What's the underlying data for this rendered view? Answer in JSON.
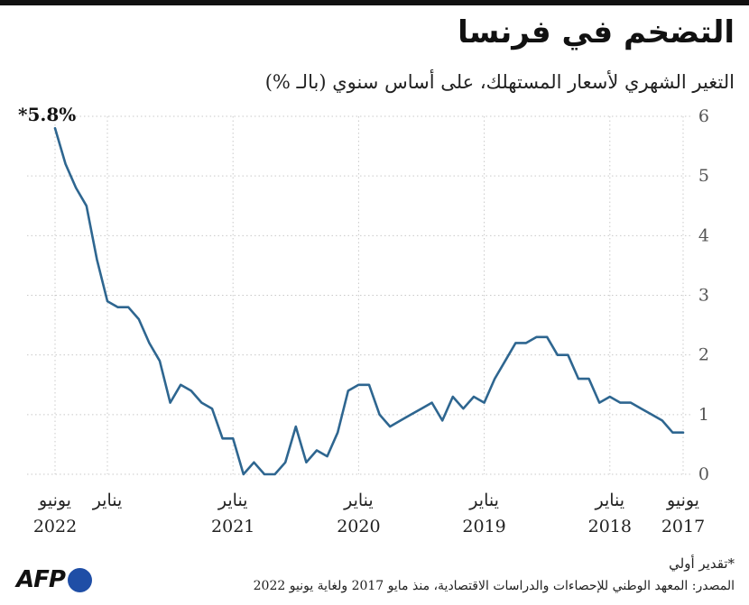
{
  "header": {
    "title": "التضخم في فرنسا",
    "subtitle": "التغير الشهري لأسعار المستهلك، على أساس سنوي (بالـ %)"
  },
  "footer": {
    "footnote": "*تقدير أولي",
    "source": "المصدر: المعهد الوطني للإحصاءات والدراسات الاقتصادية، منذ مايو 2017 ولغاية يونيو 2022",
    "logo_text": "AFP"
  },
  "colors": {
    "line": "#2e6690",
    "grid": "#c9c9c9",
    "axis_text": "#555555",
    "logo": "#1f4ea6"
  },
  "chart_data": {
    "type": "line",
    "x_direction": "right-to-left",
    "x": [
      "2017-06",
      "2017-07",
      "2017-08",
      "2017-09",
      "2017-10",
      "2017-11",
      "2017-12",
      "2018-01",
      "2018-02",
      "2018-03",
      "2018-04",
      "2018-05",
      "2018-06",
      "2018-07",
      "2018-08",
      "2018-09",
      "2018-10",
      "2018-11",
      "2018-12",
      "2019-01",
      "2019-02",
      "2019-03",
      "2019-04",
      "2019-05",
      "2019-06",
      "2019-07",
      "2019-08",
      "2019-09",
      "2019-10",
      "2019-11",
      "2019-12",
      "2020-01",
      "2020-02",
      "2020-03",
      "2020-04",
      "2020-05",
      "2020-06",
      "2020-07",
      "2020-08",
      "2020-09",
      "2020-10",
      "2020-11",
      "2020-12",
      "2021-01",
      "2021-02",
      "2021-03",
      "2021-04",
      "2021-05",
      "2021-06",
      "2021-07",
      "2021-08",
      "2021-09",
      "2021-10",
      "2021-11",
      "2021-12",
      "2022-01",
      "2022-02",
      "2022-03",
      "2022-04",
      "2022-05",
      "2022-06"
    ],
    "series": [
      {
        "values": [
          0.7,
          0.7,
          0.9,
          1.0,
          1.1,
          1.2,
          1.2,
          1.3,
          1.2,
          1.6,
          1.6,
          2.0,
          2.0,
          2.3,
          2.3,
          2.2,
          2.2,
          1.9,
          1.6,
          1.2,
          1.3,
          1.1,
          1.3,
          0.9,
          1.2,
          1.1,
          1.0,
          0.9,
          0.8,
          1.0,
          1.5,
          1.5,
          1.4,
          0.7,
          0.3,
          0.4,
          0.2,
          0.8,
          0.2,
          0.0,
          0.0,
          0.2,
          0.0,
          0.6,
          0.6,
          1.1,
          1.2,
          1.4,
          1.5,
          1.2,
          1.9,
          2.2,
          2.6,
          2.8,
          2.8,
          2.9,
          3.6,
          4.5,
          4.8,
          5.2,
          5.8
        ]
      }
    ],
    "ylim": [
      0,
      6
    ],
    "yticks": [
      "0",
      "1",
      "2",
      "3",
      "4",
      "5",
      "6"
    ],
    "grid": true,
    "annotation": {
      "x": "2022-06",
      "text": "*5.8%"
    },
    "x_tick_labels": [
      {
        "x": "2017-06",
        "line1": "يونيو",
        "line2": "2017"
      },
      {
        "x": "2018-01",
        "line1": "يناير",
        "line2": "2018"
      },
      {
        "x": "2019-01",
        "line1": "يناير",
        "line2": "2019"
      },
      {
        "x": "2020-01",
        "line1": "يناير",
        "line2": "2020"
      },
      {
        "x": "2021-01",
        "line1": "يناير",
        "line2": "2021"
      },
      {
        "x": "2022-01",
        "line1": "يناير",
        "line2": ""
      },
      {
        "x": "2022-06",
        "line1": "يونيو",
        "line2": "2022"
      }
    ]
  }
}
